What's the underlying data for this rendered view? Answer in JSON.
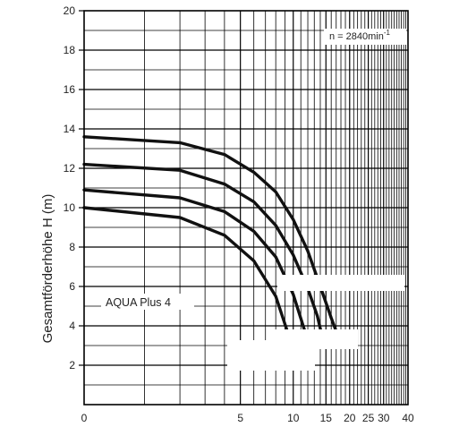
{
  "chart_data": {
    "type": "line",
    "title": "",
    "xlabel": "",
    "ylabel": "Gesamtförderhöhe   H (m)",
    "x_scale": "log1p",
    "xlim": [
      0,
      40
    ],
    "ylim": [
      0,
      20
    ],
    "x_tick_labels": [
      "0",
      "5",
      "10",
      "15",
      "20",
      "25",
      "30",
      "40"
    ],
    "x_tick_values": [
      0,
      5,
      10,
      15,
      20,
      25,
      30,
      40
    ],
    "y_tick_labels": [
      "2",
      "4",
      "6",
      "8",
      "10",
      "12",
      "14",
      "16",
      "18",
      "20"
    ],
    "y_tick_values": [
      2,
      4,
      6,
      8,
      10,
      12,
      14,
      16,
      18,
      20
    ],
    "grid": true,
    "annotations": {
      "speed_prefix": "n = 2840min",
      "speed_exponent": "-1",
      "model_label": "AQUA  Plus 4"
    },
    "series": [
      {
        "x": [
          0,
          2,
          4,
          6,
          8,
          10,
          12,
          14,
          16,
          17.5
        ],
        "y": [
          13.6,
          13.3,
          12.7,
          11.8,
          10.8,
          9.4,
          7.8,
          6.0,
          4.4,
          3.4
        ]
      },
      {
        "x": [
          0,
          2,
          4,
          6,
          8,
          10,
          12,
          13.5,
          14.7
        ],
        "y": [
          12.2,
          11.9,
          11.2,
          10.3,
          9.1,
          7.6,
          5.9,
          4.5,
          3.0
        ]
      },
      {
        "x": [
          0,
          2,
          4,
          6,
          8,
          10,
          11.5,
          12.3
        ],
        "y": [
          10.9,
          10.5,
          9.8,
          8.8,
          7.5,
          5.6,
          3.8,
          2.7
        ]
      },
      {
        "x": [
          0,
          2,
          4,
          6,
          8,
          9.3,
          10.0
        ],
        "y": [
          10.0,
          9.5,
          8.6,
          7.3,
          5.5,
          3.7,
          2.5
        ]
      }
    ]
  }
}
